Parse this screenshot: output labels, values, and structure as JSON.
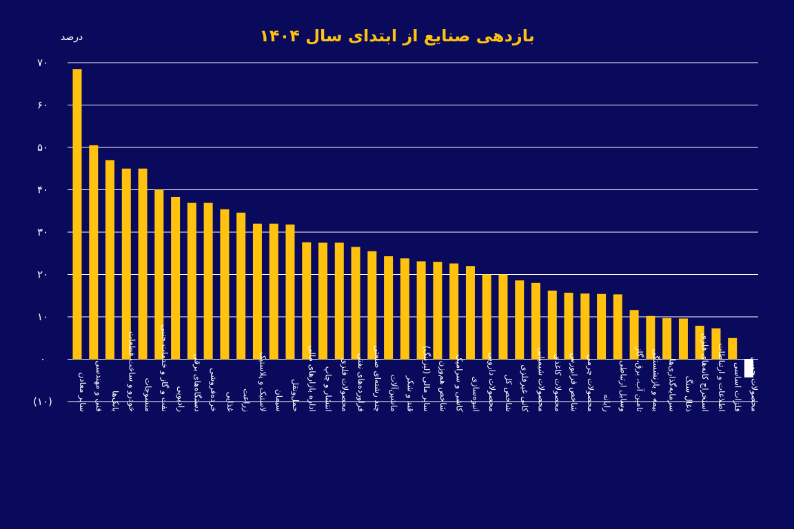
{
  "chart_data": {
    "type": "bar",
    "title": "بازدهی صنایع از ابتدای سال ۱۴۰۴",
    "ylabel": "درصد",
    "ylim": [
      -10,
      70
    ],
    "yticks": [
      70,
      60,
      50,
      40,
      30,
      20,
      10,
      0,
      -10
    ],
    "ytick_labels": [
      "۷۰",
      "۶۰",
      "۵۰",
      "۴۰",
      "۳۰",
      "۲۰",
      "۱۰",
      "۰",
      "(۱۰)"
    ],
    "grid": true,
    "categories": [
      "سایر معادن",
      "فنی و مهندسی",
      "بانک‌ها",
      "خودرو و ساخت قطعات",
      "منسوجات",
      "نفت و گاز و خدمات جنبی",
      "رادیویی",
      "دستگاه‌های برقی",
      "خرده‌فروشی",
      "غذایی",
      "زراعت",
      "لاستیک و پلاستیک",
      "سیمان",
      "حمل‌ونقل",
      "اداره بازارهای مالی",
      "انتشار و چاپ",
      "محصولات فلزی",
      "فراورده‌های نفتی",
      "چند رشته‌ای صنعتی",
      "ماشین‌آلات",
      "قند و شکر",
      "سایر مالی (لیزینگ)",
      "شاخص هم‌وزن",
      "کاشی و سرامیک",
      "انبوه‌سازی",
      "محصولات دارویی",
      "شاخص کل",
      "کانی غیرفلزی",
      "محصولات شیمیایی",
      "محصولات کاغذی",
      "شاخص فرابورس",
      "محصولات چرمی",
      "رایانه",
      "وسایل ارتباطی",
      "تامین آب، برق، گاز",
      "بیمه و بازنشستگی",
      "سرمایه‌گذاری‌ها",
      "ذغال سنگ",
      "استخراج کانه‌های فلزی",
      "اطلاعات و ارتباطات",
      "فلزات اساسی",
      "محصولات چوبی"
    ],
    "values": [
      68.5,
      50.5,
      47,
      45,
      45,
      40,
      38.3,
      36.9,
      36.9,
      35.4,
      34.6,
      32,
      32,
      31.8,
      27.6,
      27.5,
      27.5,
      26.5,
      25.5,
      24.3,
      23.8,
      23.1,
      23,
      22.6,
      22,
      20,
      20,
      18.6,
      18,
      16.2,
      15.7,
      15.5,
      15.4,
      15.3,
      11.6,
      10.2,
      9.7,
      9.6,
      7.9,
      7.3,
      5,
      -4.3
    ],
    "colors": {
      "background": "#0a0a5c",
      "positive_bar": "#ffc20e",
      "negative_bar": "#ffffff",
      "grid": "#ffffff",
      "text": "#ffffff",
      "title": "#ffc20e"
    }
  }
}
